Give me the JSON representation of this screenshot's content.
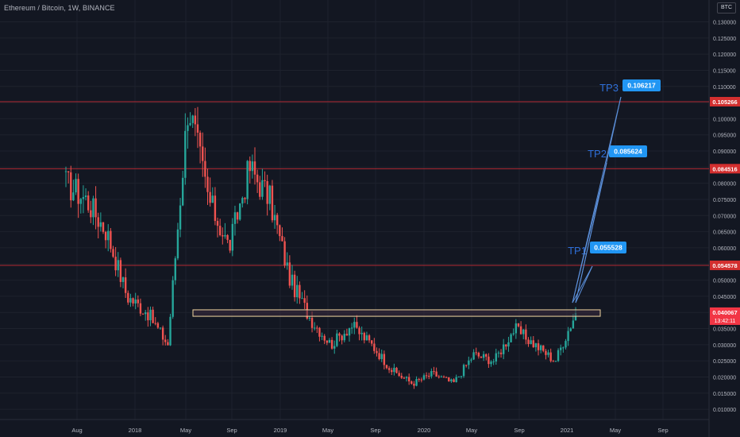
{
  "header": {
    "symbol_title": "Ethereum / Bitcoin, 1W, BINANCE",
    "currency": "BTC"
  },
  "colors": {
    "background": "#131722",
    "grid": "#1e222d",
    "candle_up": "#26a69a",
    "candle_down": "#ef5350",
    "resistance_line": "#b22833",
    "resistance_label_bg": "#d32f2f",
    "support_zone_border": "#f0d5a0",
    "support_zone_fill": "#3a2a3e",
    "target_line": "#5b8fd9",
    "target_text": "#2f6fd8",
    "target_label_bg": "#2196f3",
    "price_label_bg": "#f23645"
  },
  "price_axis": {
    "ticks": [
      "0.130000",
      "0.125000",
      "0.120000",
      "0.115000",
      "0.110000",
      "0.105000",
      "0.100000",
      "0.095000",
      "0.090000",
      "0.085000",
      "0.080000",
      "0.075000",
      "0.070000",
      "0.065000",
      "0.060000",
      "0.055000",
      "0.050000",
      "0.045000",
      "0.040000",
      "0.035000",
      "0.030000",
      "0.025000",
      "0.020000",
      "0.015000",
      "0.010000"
    ],
    "current_price": "0.040067",
    "countdown": "13:42:11"
  },
  "time_axis": {
    "labels": [
      "Aug",
      "2018",
      "May",
      "Sep",
      "2019",
      "May",
      "Sep",
      "2020",
      "May",
      "Sep",
      "2021",
      "May",
      "Sep"
    ]
  },
  "resistance_levels": [
    "0.105266",
    "0.084516",
    "0.054578"
  ],
  "support_zone": {
    "low": 0.0388,
    "high": 0.0408
  },
  "targets": [
    {
      "label": "TP1",
      "value": "0.055528"
    },
    {
      "label": "TP2",
      "value": "0.085624"
    },
    {
      "label": "TP3",
      "value": "0.106217"
    }
  ],
  "chart_data": {
    "type": "candlestick",
    "series": [
      {
        "segment": 1,
        "price": 0.08
      },
      {
        "segment": 2,
        "price": 0.075
      },
      {
        "segment": 3,
        "price": 0.065
      },
      {
        "segment": 4,
        "price": 0.045
      },
      {
        "segment": 5,
        "price": 0.04
      },
      {
        "segment": 6,
        "price": 0.03
      },
      {
        "segment": 7,
        "price": 0.105
      },
      {
        "segment": 8,
        "price": 0.075
      },
      {
        "segment": 9,
        "price": 0.06
      },
      {
        "segment": 10,
        "price": 0.085
      },
      {
        "segment": 11,
        "price": 0.075
      },
      {
        "segment": 12,
        "price": 0.05
      },
      {
        "segment": 13,
        "price": 0.038
      },
      {
        "segment": 14,
        "price": 0.03
      },
      {
        "segment": 15,
        "price": 0.036
      },
      {
        "segment": 16,
        "price": 0.03
      },
      {
        "segment": 17,
        "price": 0.022
      },
      {
        "segment": 18,
        "price": 0.018
      },
      {
        "segment": 19,
        "price": 0.021
      },
      {
        "segment": 20,
        "price": 0.018
      },
      {
        "segment": 21,
        "price": 0.027
      },
      {
        "segment": 22,
        "price": 0.025
      },
      {
        "segment": 23,
        "price": 0.035
      },
      {
        "segment": 24,
        "price": 0.03
      },
      {
        "segment": 25,
        "price": 0.025
      },
      {
        "segment": 26,
        "price": 0.04
      }
    ]
  }
}
